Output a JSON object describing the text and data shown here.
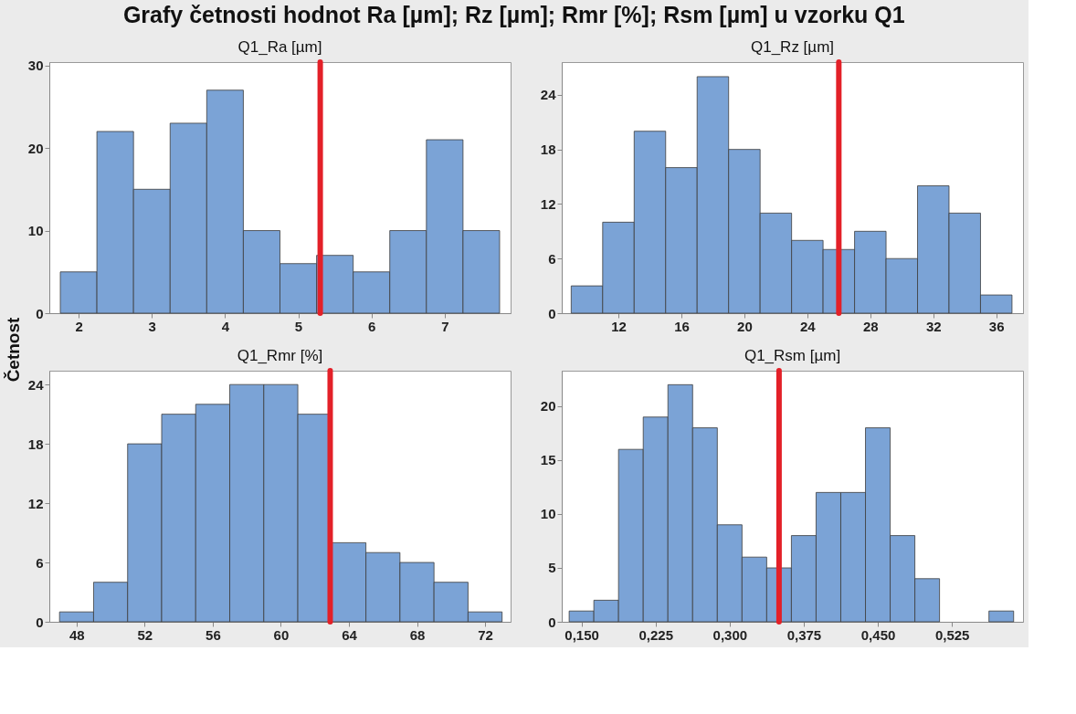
{
  "chart_data": [
    {
      "type": "histogram",
      "title": "Q1_Ra [µm]",
      "ylabel": "Četnost",
      "annotations": [
        "Grafy četnosti hodnot Ra [µm]; Rz [µm]; Rmr [%]; Rsm [µm] u vzorku Q1"
      ],
      "color": "#7ba3d6",
      "bins": [
        1.75,
        2.25,
        2.75,
        3.25,
        3.75,
        4.25,
        4.75,
        5.25,
        5.75,
        6.25,
        6.75,
        7.25,
        7.75
      ],
      "values": [
        5,
        22,
        15,
        23,
        27,
        10,
        6,
        7,
        5,
        10,
        21,
        10
      ],
      "xlim": [
        1.6,
        7.9
      ],
      "xticks": [
        2,
        3,
        4,
        5,
        6,
        7
      ],
      "ylim": [
        0,
        30.4
      ],
      "yticks": [
        0,
        10,
        20,
        30
      ],
      "grid": false,
      "ref_lines": [
        {
          "axis": "x",
          "value": 5.3,
          "color": "#e32028"
        }
      ]
    },
    {
      "type": "histogram",
      "title": "Q1_Rz [µm]",
      "color": "#7ba3d6",
      "bins": [
        9,
        11,
        13,
        15,
        17,
        19,
        21,
        23,
        25,
        27,
        29,
        31,
        33,
        35,
        37
      ],
      "values": [
        3,
        10,
        20,
        16,
        26,
        18,
        11,
        8,
        7,
        9,
        6,
        14,
        11,
        2
      ],
      "xlim": [
        8.4,
        37.7
      ],
      "xticks": [
        12,
        16,
        20,
        24,
        28,
        32,
        36
      ],
      "ylim": [
        0,
        27.6
      ],
      "yticks": [
        0,
        6,
        12,
        18,
        24
      ],
      "grid": false,
      "ref_lines": [
        {
          "axis": "x",
          "value": 26,
          "color": "#e32028"
        }
      ]
    },
    {
      "type": "histogram",
      "title": "Q1_Rmr [%]",
      "color": "#7ba3d6",
      "bins": [
        47,
        49,
        51,
        53,
        55,
        57,
        59,
        61,
        63,
        65,
        67,
        69,
        71,
        73
      ],
      "values": [
        1,
        4,
        18,
        21,
        22,
        24,
        24,
        21,
        8,
        7,
        6,
        4,
        1
      ],
      "xlim": [
        46.4,
        73.5
      ],
      "xticks": [
        48,
        52,
        56,
        60,
        64,
        68,
        72
      ],
      "ylim": [
        0,
        25.4
      ],
      "yticks": [
        0,
        6,
        12,
        18,
        24
      ],
      "grid": false,
      "ref_lines": [
        {
          "axis": "x",
          "value": 62.9,
          "color": "#e32028"
        }
      ]
    },
    {
      "type": "histogram",
      "title": "Q1_Rsm [µm]",
      "color": "#7ba3d6",
      "bins": [
        0.1375,
        0.1625,
        0.1875,
        0.2125,
        0.2375,
        0.2625,
        0.2875,
        0.3125,
        0.3375,
        0.3625,
        0.3875,
        0.4125,
        0.4375,
        0.4625,
        0.4875,
        0.5125,
        0.5375,
        0.5625,
        0.5875
      ],
      "values": [
        1,
        2,
        16,
        19,
        22,
        18,
        9,
        6,
        5,
        8,
        12,
        12,
        18,
        8,
        4,
        0,
        0,
        1
      ],
      "xlim": [
        0.13,
        0.597
      ],
      "xticks": [
        {
          "value": 0.15,
          "label": "0,150"
        },
        {
          "value": 0.225,
          "label": "0,225"
        },
        {
          "value": 0.3,
          "label": "0,300"
        },
        {
          "value": 0.375,
          "label": "0,375"
        },
        {
          "value": 0.45,
          "label": "0,450"
        },
        {
          "value": 0.525,
          "label": "0,525"
        }
      ],
      "ylim": [
        0,
        23.3
      ],
      "yticks": [
        0,
        5,
        10,
        15,
        20
      ],
      "grid": false,
      "ref_lines": [
        {
          "axis": "x",
          "value": 0.35,
          "color": "#e32028"
        }
      ]
    }
  ]
}
